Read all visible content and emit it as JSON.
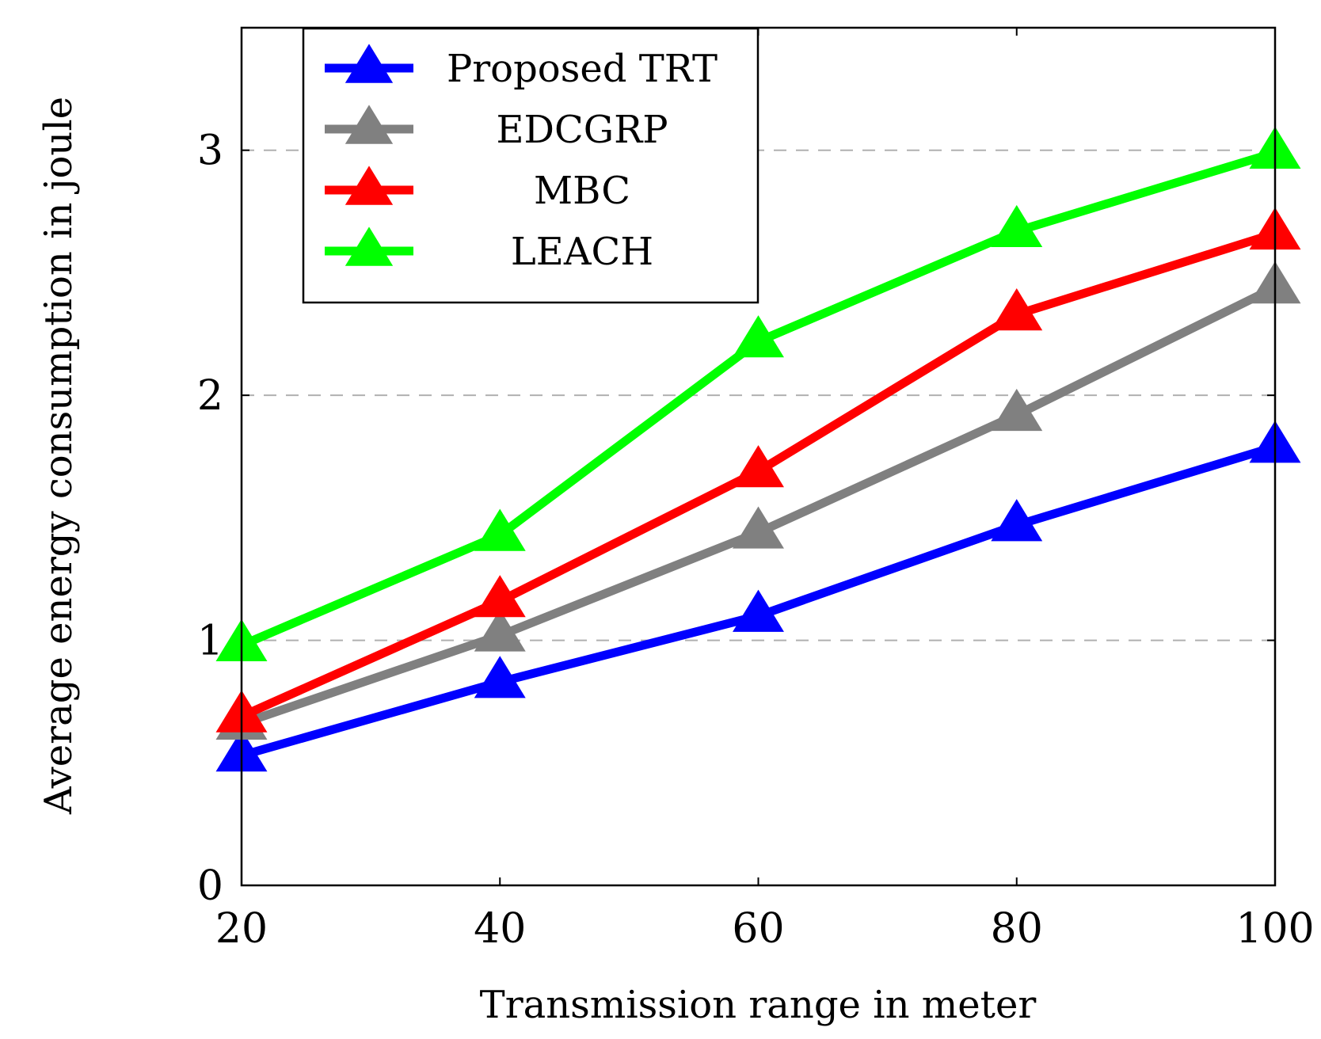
{
  "chart_data": {
    "type": "line",
    "title": "",
    "xlabel": "Transmission range in meter",
    "ylabel": "Average energy consumption in joule",
    "x": [
      20,
      40,
      60,
      80,
      100
    ],
    "x_tick_labels": [
      "20",
      "40",
      "60",
      "80",
      "100"
    ],
    "y_ticks": [
      0,
      1,
      2,
      3
    ],
    "y_tick_labels": [
      "0",
      "1",
      "2",
      "3"
    ],
    "xlim": [
      20,
      100
    ],
    "ylim": [
      0,
      3.5
    ],
    "grid": "horizontal dashed",
    "legend_position": "top-left",
    "series": [
      {
        "name": "Proposed TRT",
        "color": "#0000ff",
        "marker": "triangle",
        "values": [
          0.53,
          0.83,
          1.1,
          1.47,
          1.79
        ]
      },
      {
        "name": "EDCGRP",
        "color": "#808080",
        "marker": "triangle",
        "values": [
          0.66,
          1.02,
          1.44,
          1.92,
          2.44
        ]
      },
      {
        "name": "MBC",
        "color": "#ff0000",
        "marker": "triangle",
        "values": [
          0.69,
          1.16,
          1.69,
          2.33,
          2.66
        ]
      },
      {
        "name": "LEACH",
        "color": "#00ff00",
        "marker": "triangle",
        "values": [
          0.98,
          1.43,
          2.22,
          2.67,
          2.99
        ]
      }
    ]
  }
}
